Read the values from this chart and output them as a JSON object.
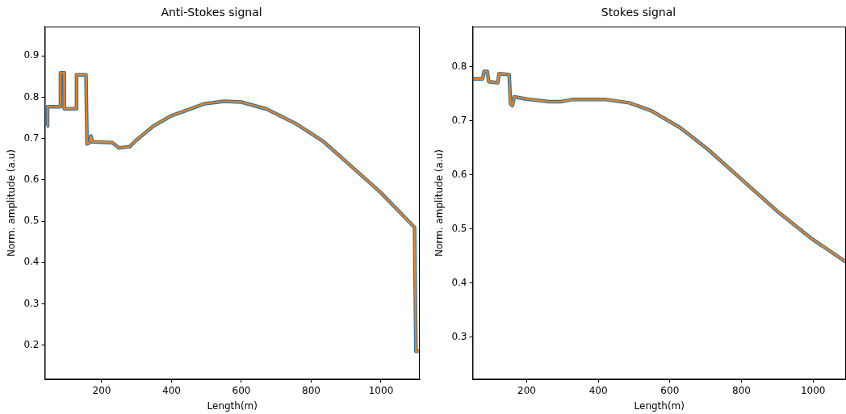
{
  "chart_data": [
    {
      "type": "line",
      "title": "Anti-Stokes signal",
      "xlabel": "Length(m)",
      "ylabel": "Norm. amplitude (a.u)",
      "xlim": [
        37,
        1111
      ],
      "ylim": [
        0.117,
        0.971
      ],
      "xticks": [
        200,
        400,
        600,
        800,
        1000
      ],
      "yticks": [
        0.2,
        0.3,
        0.4,
        0.5,
        0.6,
        0.7,
        0.8,
        0.9
      ],
      "grid": false,
      "legend": false,
      "marker": "none",
      "line_style": "solid",
      "series": [
        {
          "color": "#1f77b4",
          "x": [
            43,
            45,
            81,
            82,
            92,
            93,
            127,
            128,
            155,
            158,
            165,
            169,
            173,
            230,
            250,
            280,
            299,
            348,
            397,
            429,
            494,
            551,
            600,
            673,
            754,
            836,
            917,
            998,
            1096,
            1100,
            1108
          ],
          "values": [
            0.73,
            0.777,
            0.777,
            0.859,
            0.859,
            0.772,
            0.772,
            0.854,
            0.854,
            0.687,
            0.69,
            0.706,
            0.692,
            0.69,
            0.677,
            0.68,
            0.696,
            0.73,
            0.754,
            0.764,
            0.784,
            0.79,
            0.788,
            0.771,
            0.737,
            0.692,
            0.631,
            0.57,
            0.485,
            0.185,
            0.185
          ]
        },
        {
          "color": "#ff7f0e",
          "x": [
            43,
            45,
            81,
            82,
            92,
            93,
            127,
            128,
            155,
            158,
            165,
            169,
            173,
            230,
            250,
            280,
            299,
            348,
            397,
            429,
            494,
            551,
            600,
            673,
            754,
            836,
            917,
            998,
            1096,
            1100,
            1108
          ],
          "values": [
            0.73,
            0.777,
            0.777,
            0.859,
            0.859,
            0.772,
            0.772,
            0.854,
            0.854,
            0.687,
            0.69,
            0.706,
            0.692,
            0.69,
            0.677,
            0.68,
            0.696,
            0.73,
            0.754,
            0.764,
            0.784,
            0.79,
            0.788,
            0.771,
            0.737,
            0.692,
            0.631,
            0.57,
            0.485,
            0.185,
            0.185
          ]
        }
      ]
    },
    {
      "type": "line",
      "title": "Stokes signal",
      "xlabel": "Length(m)",
      "ylabel": "Norm. amplitude (a.u)",
      "xlim": [
        49,
        1092
      ],
      "ylim": [
        0.222,
        0.874
      ],
      "xticks": [
        200,
        400,
        600,
        800,
        1000
      ],
      "yticks": [
        0.3,
        0.4,
        0.5,
        0.6,
        0.7,
        0.8
      ],
      "grid": false,
      "legend": false,
      "marker": "none",
      "line_style": "solid",
      "series": [
        {
          "color": "#1f77b4",
          "x": [
            49,
            77,
            81,
            90,
            94,
            119,
            123,
            151,
            155,
            160,
            165,
            200,
            263,
            295,
            327,
            422,
            486,
            549,
            629,
            708,
            803,
            898,
            994,
            1092
          ],
          "values": [
            0.777,
            0.777,
            0.791,
            0.791,
            0.772,
            0.77,
            0.787,
            0.785,
            0.731,
            0.728,
            0.744,
            0.74,
            0.735,
            0.735,
            0.739,
            0.739,
            0.733,
            0.718,
            0.687,
            0.646,
            0.59,
            0.534,
            0.483,
            0.439
          ]
        },
        {
          "color": "#ff7f0e",
          "x": [
            49,
            77,
            81,
            90,
            94,
            119,
            123,
            151,
            155,
            160,
            165,
            200,
            263,
            295,
            327,
            422,
            486,
            549,
            629,
            708,
            803,
            898,
            994,
            1092
          ],
          "values": [
            0.777,
            0.777,
            0.791,
            0.791,
            0.772,
            0.77,
            0.787,
            0.785,
            0.731,
            0.728,
            0.744,
            0.74,
            0.735,
            0.735,
            0.739,
            0.739,
            0.733,
            0.718,
            0.687,
            0.646,
            0.59,
            0.534,
            0.483,
            0.439
          ]
        }
      ]
    }
  ]
}
